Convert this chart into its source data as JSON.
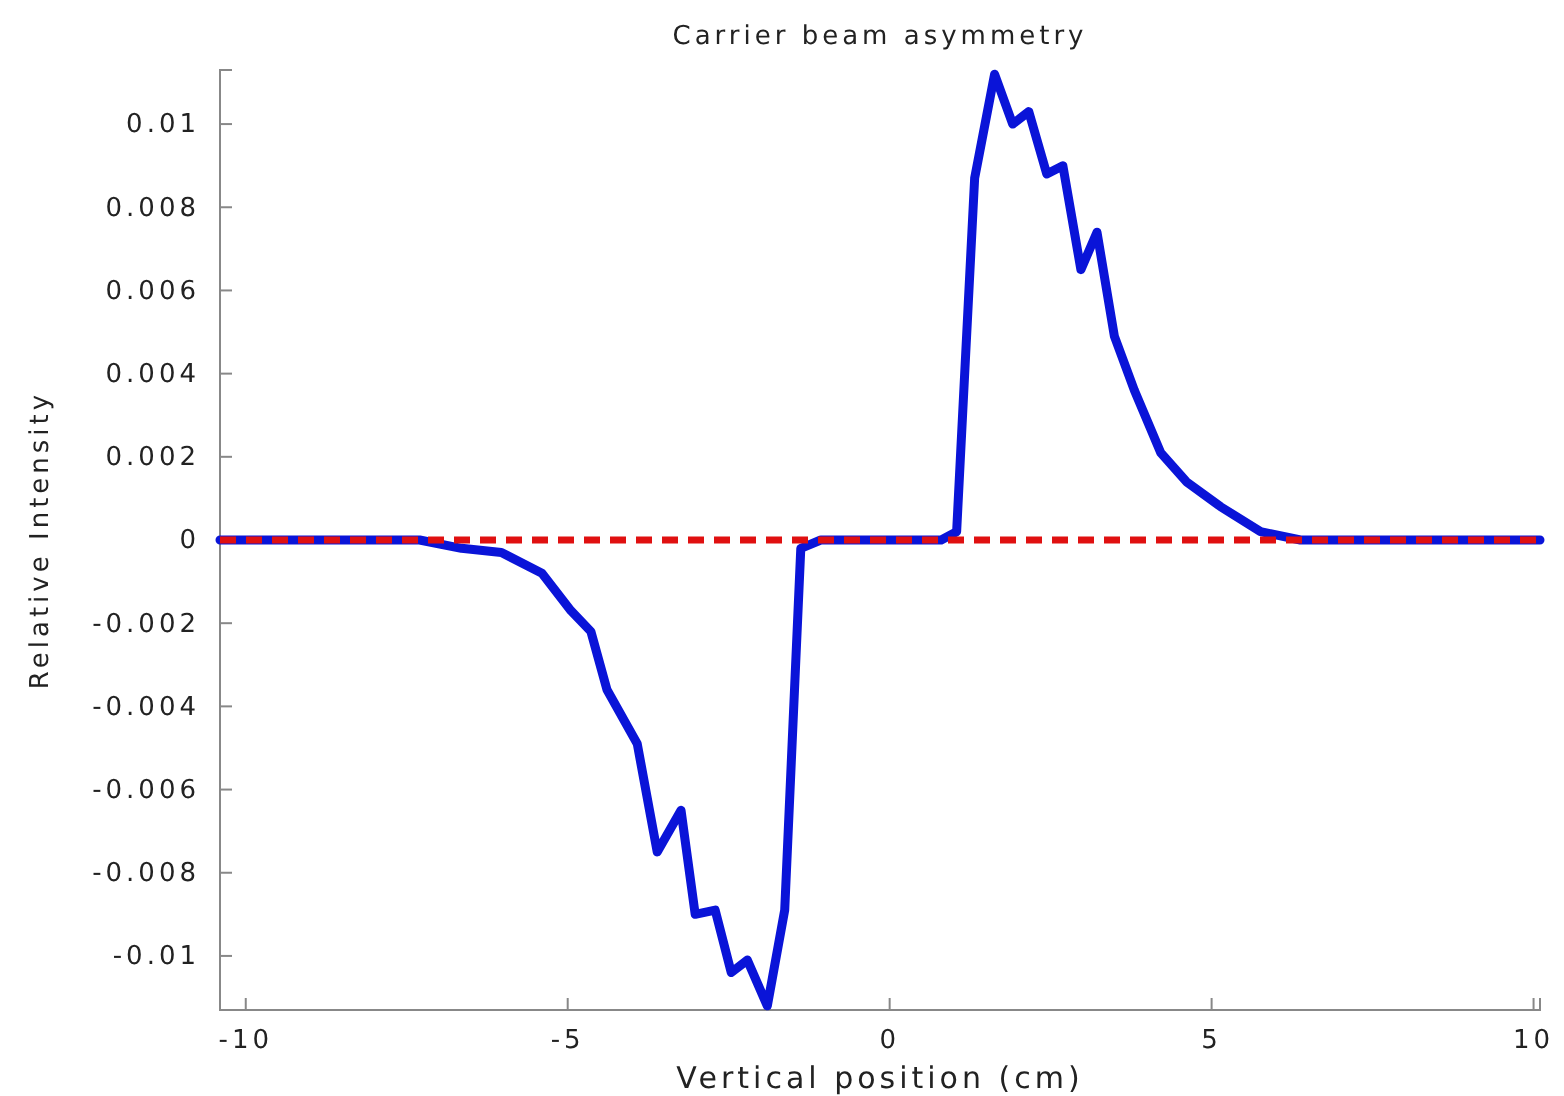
{
  "chart_data": {
    "type": "line",
    "title": "Carrier beam asymmetry",
    "xlabel": "Vertical position (cm)",
    "ylabel": "Relative Intensity",
    "x": [
      -10.4,
      -7.3,
      -6.65,
      -6.03,
      -5.4,
      -4.95,
      -4.64,
      -4.39,
      -3.92,
      -3.61,
      -3.24,
      -3.02,
      -2.71,
      -2.46,
      -2.21,
      -1.9,
      -1.63,
      -1.38,
      -1.07,
      -0.45,
      0.8,
      1.04,
      1.32,
      1.63,
      1.91,
      2.16,
      2.44,
      2.69,
      2.97,
      3.22,
      3.49,
      3.8,
      4.21,
      4.61,
      5.14,
      5.76,
      6.38,
      7.0,
      10.1
    ],
    "series": [
      {
        "color": "#0a14d8",
        "values": [
          0,
          0,
          -0.0002,
          -0.0003,
          -0.0008,
          -0.0017,
          -0.0022,
          -0.0036,
          -0.0049,
          -0.0075,
          -0.0065,
          -0.009,
          -0.0089,
          -0.0104,
          -0.0101,
          -0.0112,
          -0.0089,
          -0.0002,
          0,
          0,
          0,
          0.0002,
          0.0087,
          0.0112,
          0.01,
          0.0103,
          0.0088,
          0.009,
          0.0065,
          0.0074,
          0.0049,
          0.0036,
          0.0021,
          0.0014,
          0.0008,
          0.0002,
          0,
          0,
          0
        ]
      }
    ],
    "ref_lines": [
      {
        "axis": "y",
        "value": 0,
        "color": "#e01010",
        "line_style": "dashed"
      }
    ],
    "xlim": [
      -10.4,
      10.1
    ],
    "ylim": [
      -0.0113,
      0.0113
    ],
    "xticks": [
      -10,
      -5,
      0,
      5,
      10
    ],
    "yticks": [
      -0.01,
      -0.008,
      -0.006,
      -0.004,
      -0.002,
      0,
      0.002,
      0.004,
      0.006,
      0.008,
      0.01
    ],
    "grid": false,
    "marker": "none",
    "line_style": "solid"
  }
}
